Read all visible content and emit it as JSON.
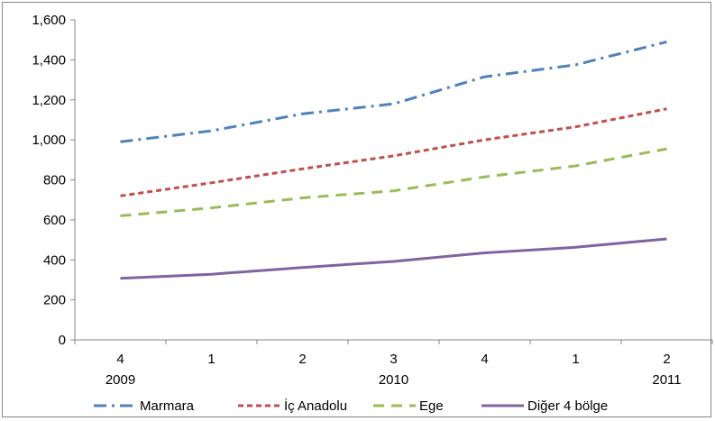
{
  "chart_data": {
    "type": "line",
    "title": "",
    "xlabel": "",
    "ylabel": "",
    "ylim": [
      0,
      1600
    ],
    "yticks": [
      0,
      200,
      400,
      600,
      800,
      1000,
      1200,
      1400,
      1600
    ],
    "ytick_labels": [
      "0",
      "200",
      "400",
      "600",
      "800",
      "1,000",
      "1,200",
      "1,400",
      "1,600"
    ],
    "categories": [
      "4",
      "1",
      "2",
      "3",
      "4",
      "1",
      "2"
    ],
    "year_labels": [
      {
        "label": "2009",
        "index": 0
      },
      {
        "label": "2010",
        "index": 3
      },
      {
        "label": "2011",
        "index": 6
      }
    ],
    "grid": false,
    "legend": "bottom",
    "series": [
      {
        "name": "Marmara",
        "color": "#4F81BD",
        "dash": "dash-dot",
        "values": [
          990,
          1045,
          1130,
          1180,
          1315,
          1375,
          1490
        ]
      },
      {
        "name": "İç Anadolu",
        "color": "#C0504D",
        "dash": "dash",
        "values": [
          720,
          785,
          855,
          920,
          1000,
          1065,
          1155
        ]
      },
      {
        "name": "Ege",
        "color": "#9BBB59",
        "dash": "long-dash",
        "values": [
          620,
          660,
          710,
          745,
          815,
          870,
          955
        ]
      },
      {
        "name": "Diğer 4 bölge",
        "color": "#8064A2",
        "dash": "solid",
        "values": [
          308,
          328,
          362,
          392,
          435,
          463,
          505
        ]
      }
    ]
  }
}
